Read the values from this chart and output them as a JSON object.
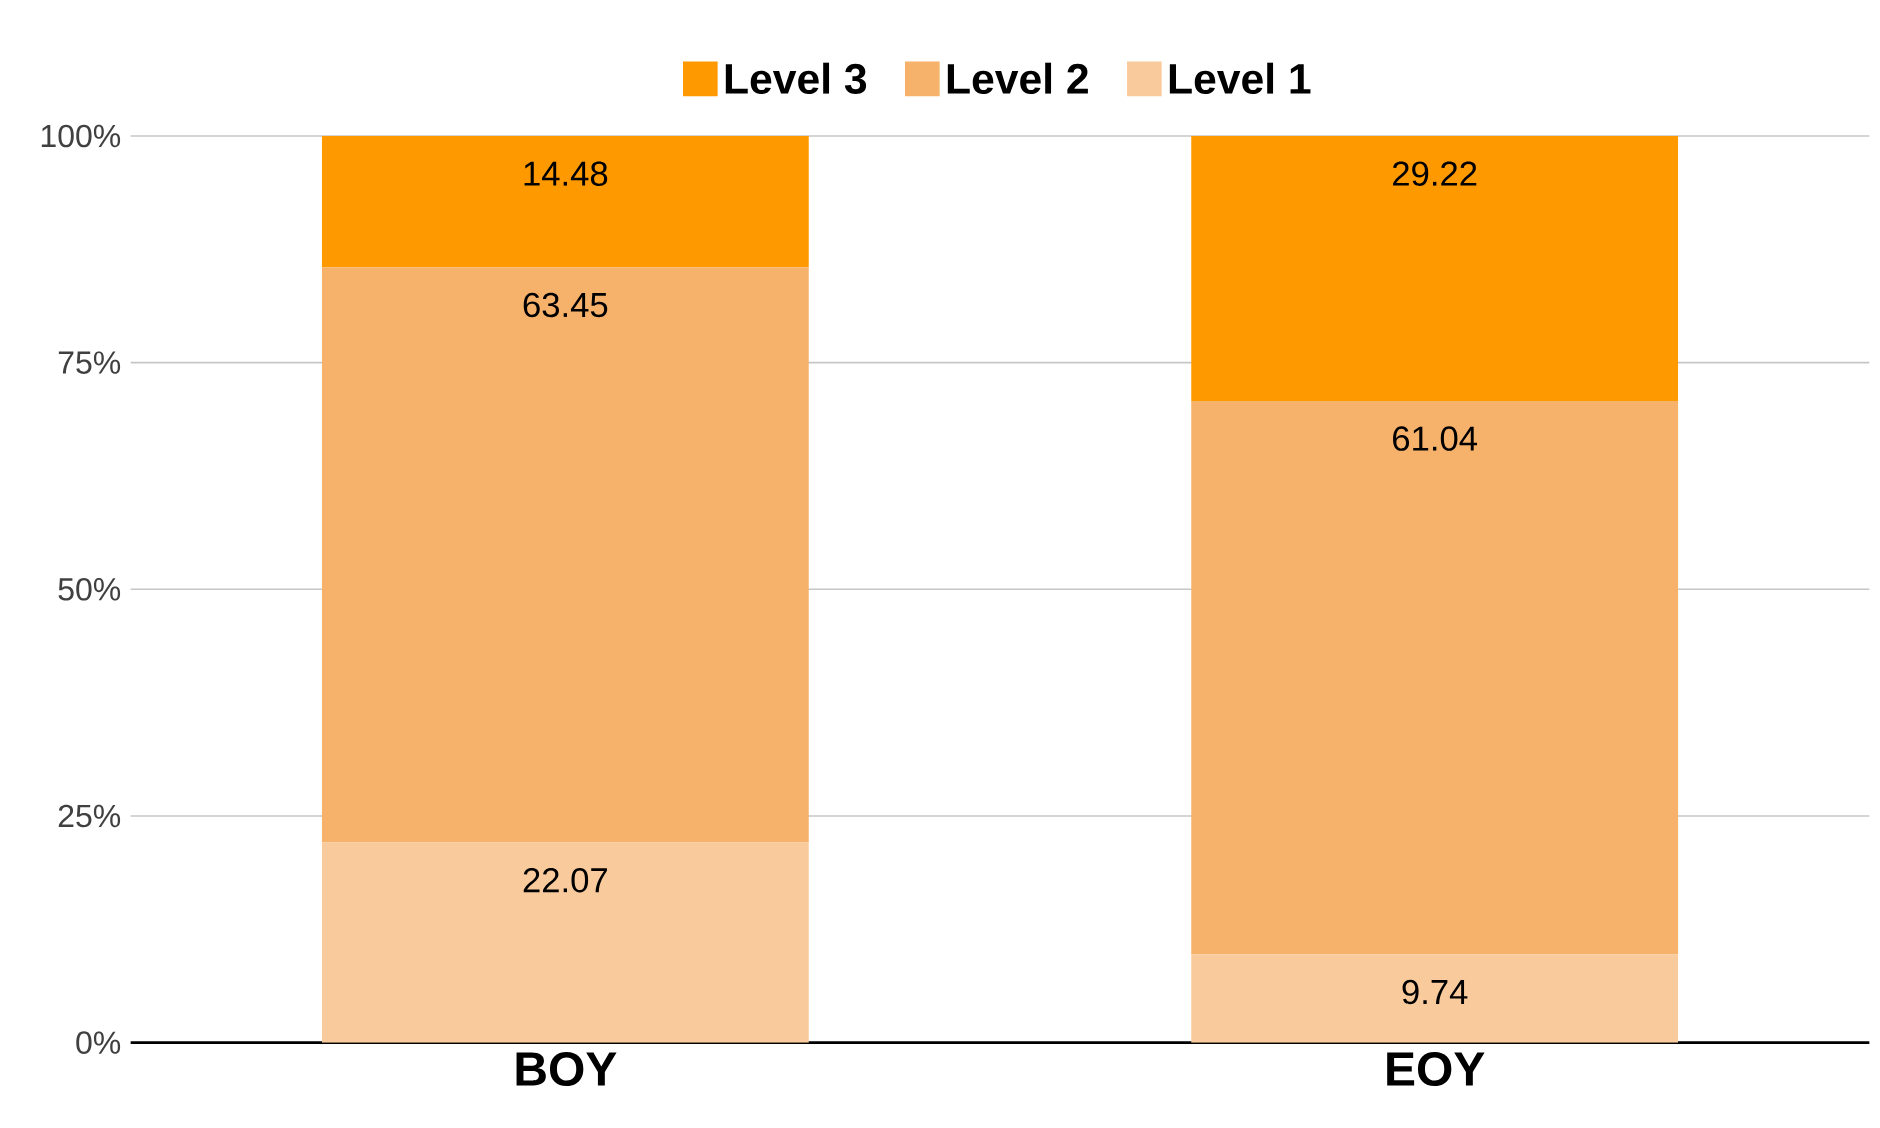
{
  "chart_data": {
    "type": "bar",
    "stacked": true,
    "categories": [
      "BOY",
      "EOY"
    ],
    "series": [
      {
        "name": "Level 1",
        "color": "#f9cb9c",
        "values": [
          22.07,
          9.74
        ]
      },
      {
        "name": "Level 2",
        "color": "#f6b26b",
        "values": [
          63.45,
          61.04
        ]
      },
      {
        "name": "Level 3",
        "color": "#ff9900",
        "values": [
          14.48,
          29.22
        ]
      }
    ],
    "ylim": [
      0,
      100
    ],
    "yticks": [
      {
        "value": 0,
        "label": "0%"
      },
      {
        "value": 25,
        "label": "25%"
      },
      {
        "value": 50,
        "label": "50%"
      },
      {
        "value": 75,
        "label": "75%"
      },
      {
        "value": 100,
        "label": "100%"
      }
    ],
    "grid": "y",
    "legend": "top",
    "data_labels": true
  }
}
